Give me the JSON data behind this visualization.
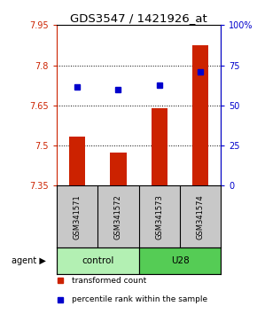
{
  "title": "GDS3547 / 1421926_at",
  "samples": [
    "GSM341571",
    "GSM341572",
    "GSM341573",
    "GSM341574"
  ],
  "bar_values": [
    7.535,
    7.475,
    7.64,
    7.875
  ],
  "bar_bottom": 7.35,
  "bar_color": "#cc2200",
  "dot_values": [
    7.72,
    7.71,
    7.725,
    7.775
  ],
  "dot_color": "#0000cc",
  "ylim_left": [
    7.35,
    7.95
  ],
  "yticks_left": [
    7.35,
    7.5,
    7.65,
    7.8,
    7.95
  ],
  "ylim_right": [
    0,
    100
  ],
  "yticks_right": [
    0,
    25,
    50,
    75,
    100
  ],
  "ytick_labels_right": [
    "0",
    "25",
    "50",
    "75",
    "100%"
  ],
  "groups": [
    {
      "label": "control",
      "cols": [
        0,
        1
      ],
      "color": "#b3f0b3"
    },
    {
      "label": "U28",
      "cols": [
        2,
        3
      ],
      "color": "#55cc55"
    }
  ],
  "agent_label": "agent",
  "legend": [
    {
      "color": "#cc2200",
      "label": "transformed count"
    },
    {
      "color": "#0000cc",
      "label": "percentile rank within the sample"
    }
  ],
  "background_color": "#ffffff",
  "sample_bg_color": "#c8c8c8",
  "title_fontsize": 9.5,
  "tick_fontsize": 7,
  "label_fontsize": 7
}
